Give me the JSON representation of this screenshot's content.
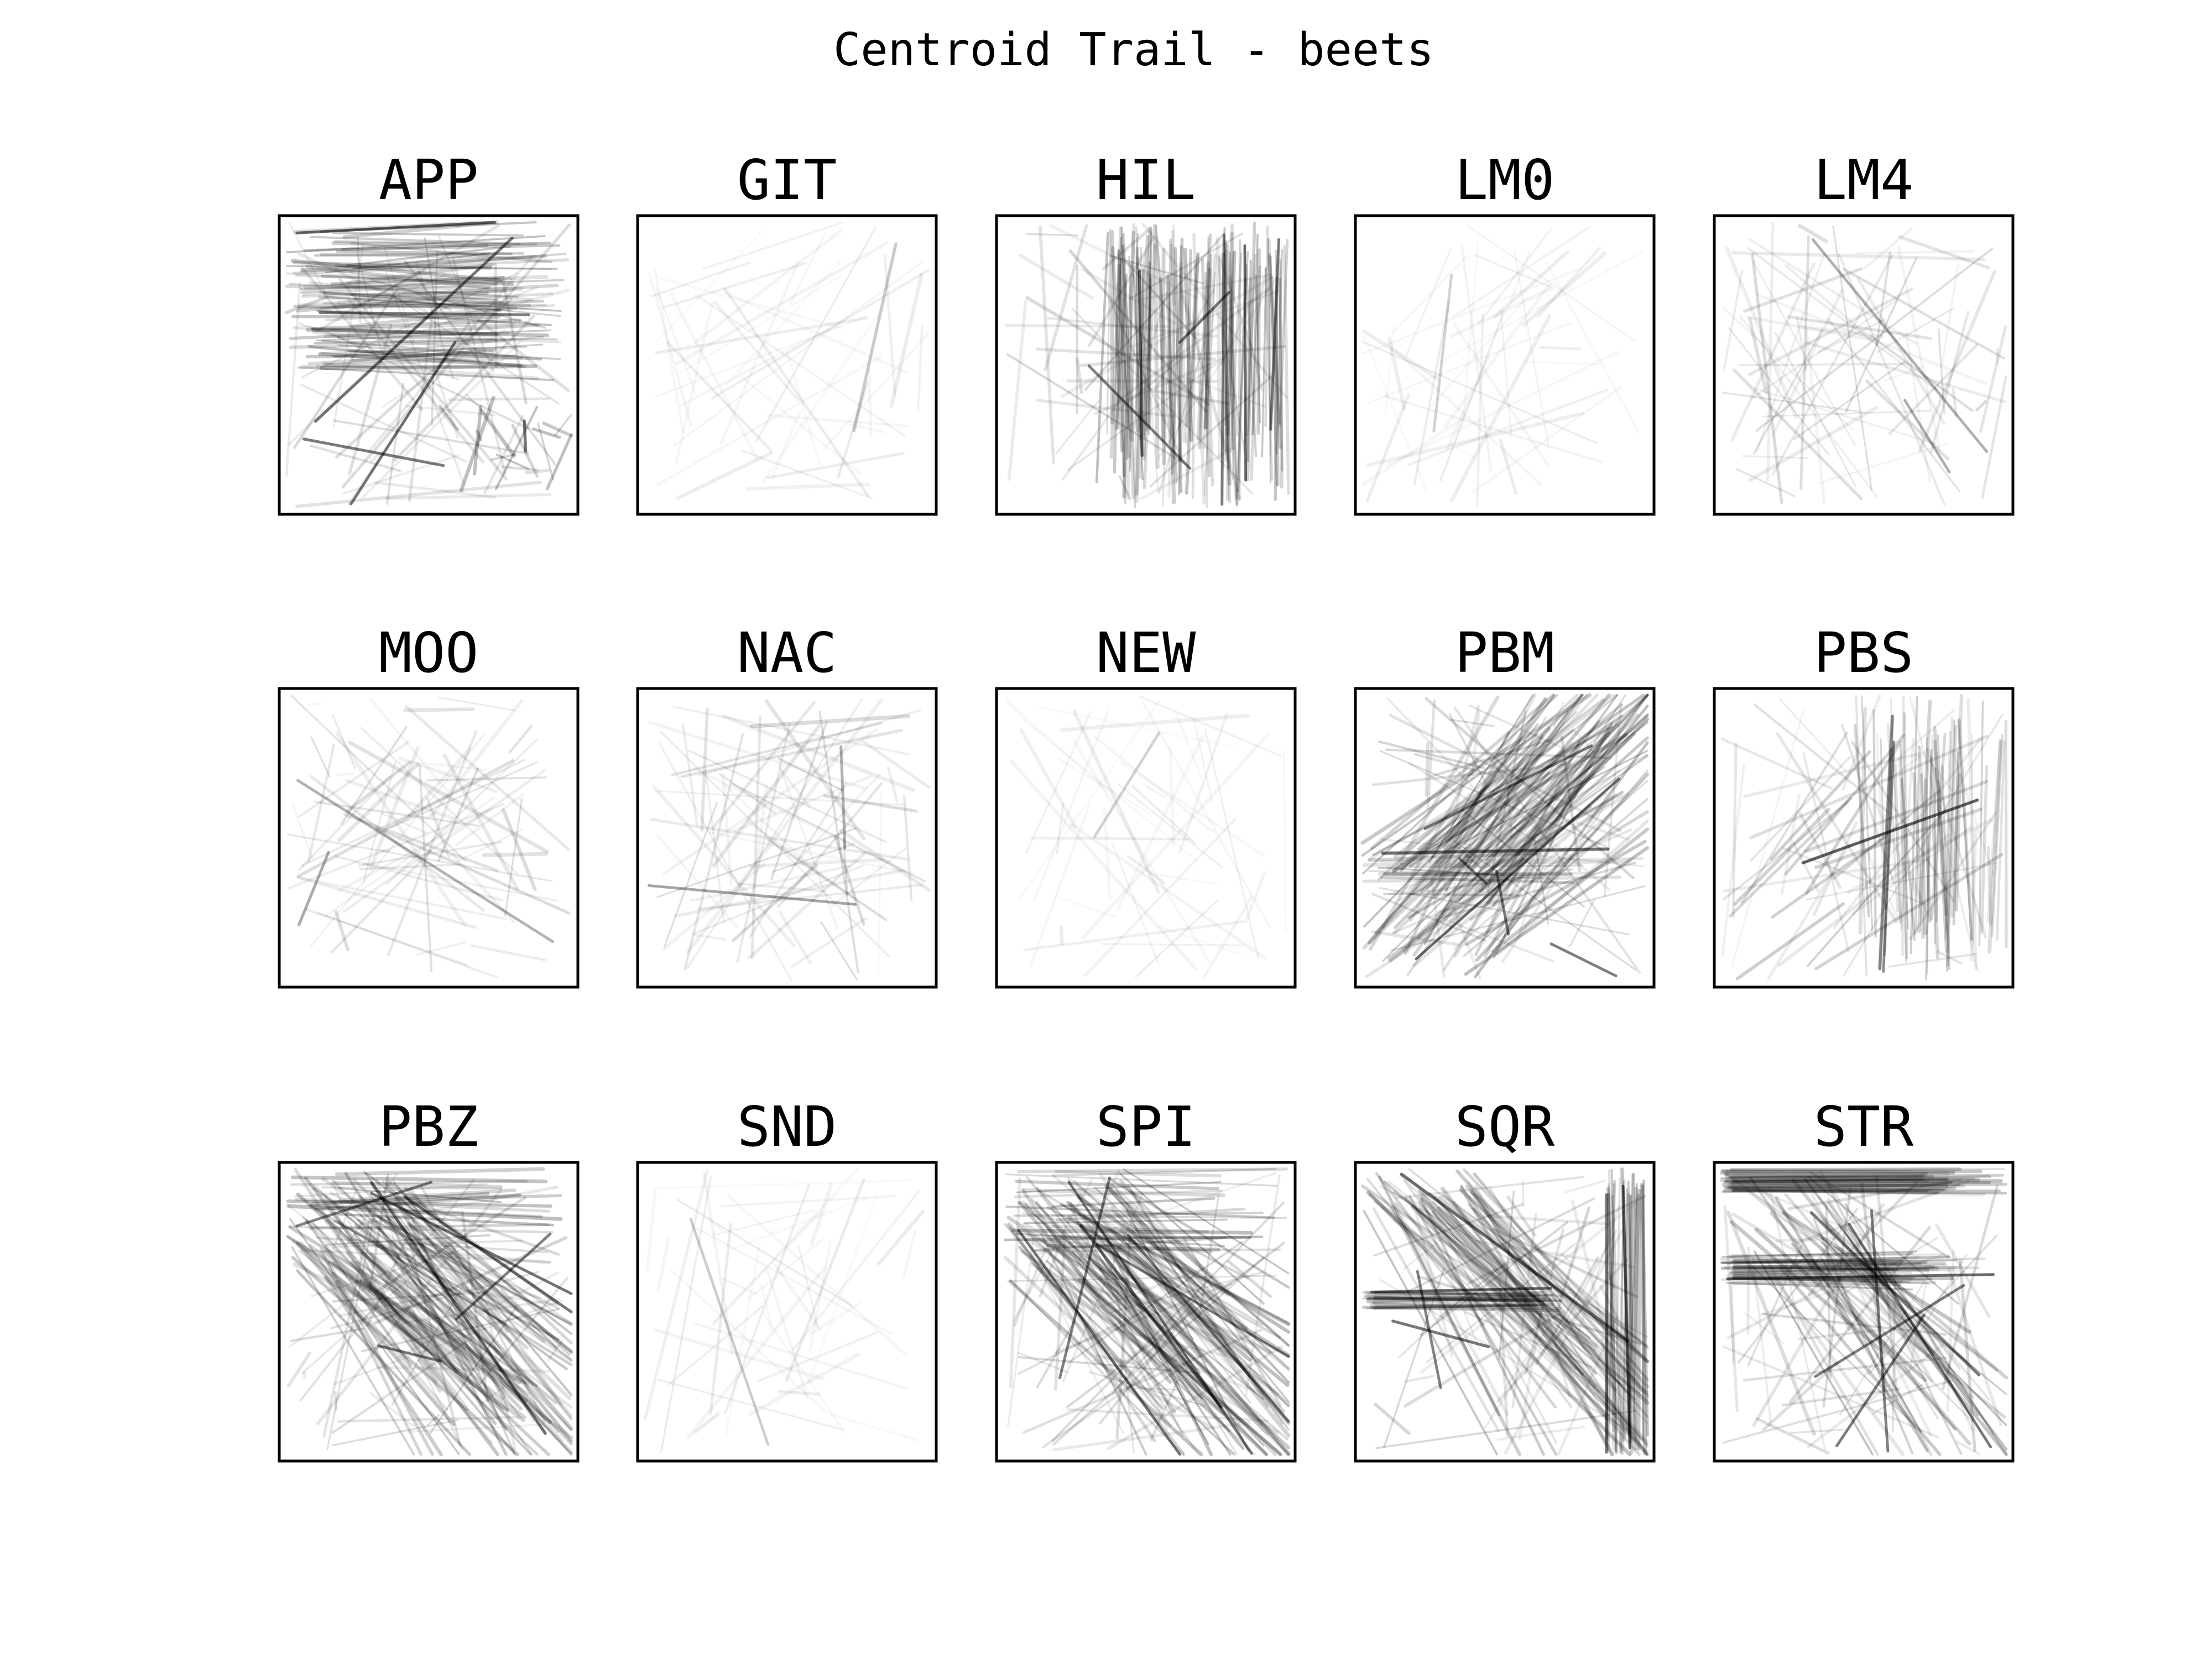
{
  "figure": {
    "title": "Centroid Trail - beets",
    "background": "#ffffff",
    "frame_color": "#000000",
    "stroke_color": "#000000"
  },
  "chart_data": [
    {
      "type": "line",
      "title": "APP",
      "density": "heavy",
      "pattern": "top-horizontal-cluster",
      "seed": 11
    },
    {
      "type": "line",
      "title": "GIT",
      "density": "sparse",
      "pattern": "random-faint",
      "seed": 12
    },
    {
      "type": "line",
      "title": "HIL",
      "density": "heavy",
      "pattern": "vertical-strokes",
      "seed": 13
    },
    {
      "type": "line",
      "title": "LM0",
      "density": "sparse",
      "pattern": "random-faint",
      "seed": 14
    },
    {
      "type": "line",
      "title": "LM4",
      "density": "light",
      "pattern": "random-light",
      "seed": 15
    },
    {
      "type": "line",
      "title": "MOO",
      "density": "light",
      "pattern": "random-light",
      "seed": 16
    },
    {
      "type": "line",
      "title": "NAC",
      "density": "light",
      "pattern": "random-light",
      "seed": 17
    },
    {
      "type": "line",
      "title": "NEW",
      "density": "sparse",
      "pattern": "random-faint",
      "seed": 18
    },
    {
      "type": "line",
      "title": "PBM",
      "density": "heavy",
      "pattern": "diagonal-up",
      "seed": 19
    },
    {
      "type": "line",
      "title": "PBS",
      "density": "medium",
      "pattern": "vertical-right",
      "seed": 20
    },
    {
      "type": "line",
      "title": "PBZ",
      "density": "heavy",
      "pattern": "diagonal-down",
      "seed": 21
    },
    {
      "type": "line",
      "title": "SND",
      "density": "sparse",
      "pattern": "random-faint",
      "seed": 22
    },
    {
      "type": "line",
      "title": "SPI",
      "density": "heavy",
      "pattern": "diagonal-down",
      "seed": 23
    },
    {
      "type": "line",
      "title": "SQR",
      "density": "heavy",
      "pattern": "diagonal-down-horizontal",
      "seed": 24
    },
    {
      "type": "line",
      "title": "STR",
      "density": "heavy",
      "pattern": "horizontal-diagonal-down",
      "seed": 25
    }
  ]
}
